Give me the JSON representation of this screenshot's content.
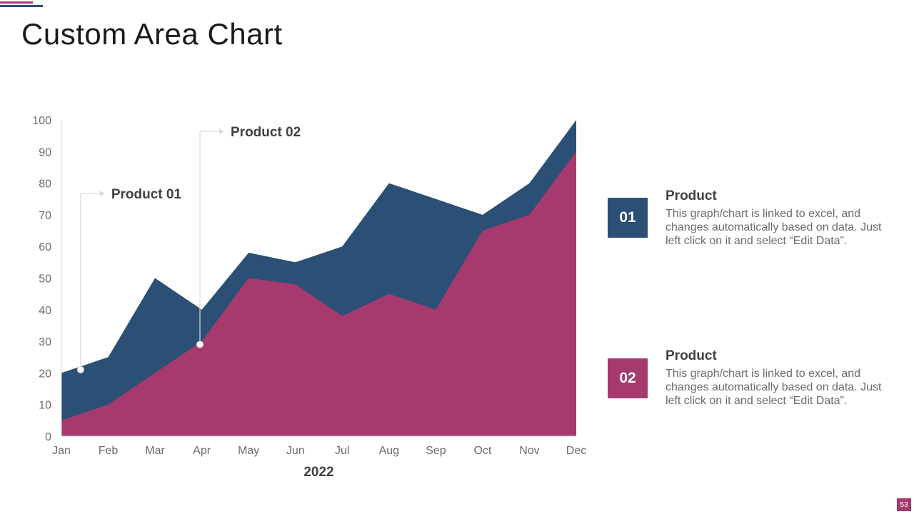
{
  "page": {
    "title": "Custom Area Chart",
    "page_number": "53"
  },
  "colors": {
    "product01": "#2c4f76",
    "product02": "#a63a6e"
  },
  "chart_data": {
    "type": "area",
    "categories": [
      "Jan",
      "Feb",
      "Mar",
      "Apr",
      "May",
      "Jun",
      "Jul",
      "Aug",
      "Sep",
      "Oct",
      "Nov",
      "Dec"
    ],
    "series": [
      {
        "name": "Product 01",
        "values": [
          20,
          25,
          50,
          40,
          58,
          55,
          60,
          80,
          75,
          70,
          80,
          100
        ]
      },
      {
        "name": "Product 02",
        "values": [
          5,
          10,
          20,
          30,
          50,
          48,
          38,
          45,
          40,
          65,
          70,
          90
        ]
      }
    ],
    "yticks": [
      0,
      10,
      20,
      30,
      40,
      50,
      60,
      70,
      80,
      90,
      100
    ],
    "ylim": [
      0,
      100
    ],
    "xlabel": "2022",
    "ylabel": "",
    "callouts": [
      {
        "label": "Product 01",
        "x_index": 0.41,
        "y": 21
      },
      {
        "label": "Product 02",
        "x_index": 2.96,
        "y": 29
      }
    ]
  },
  "legend": [
    {
      "number": "01",
      "title": "Product",
      "description": "This graph/chart is linked to excel, and changes automatically based on data. Just left click on it and select “Edit Data”."
    },
    {
      "number": "02",
      "title": "Product",
      "description": "This graph/chart is linked to excel, and changes automatically based on data. Just left click on it and select “Edit Data”."
    }
  ]
}
